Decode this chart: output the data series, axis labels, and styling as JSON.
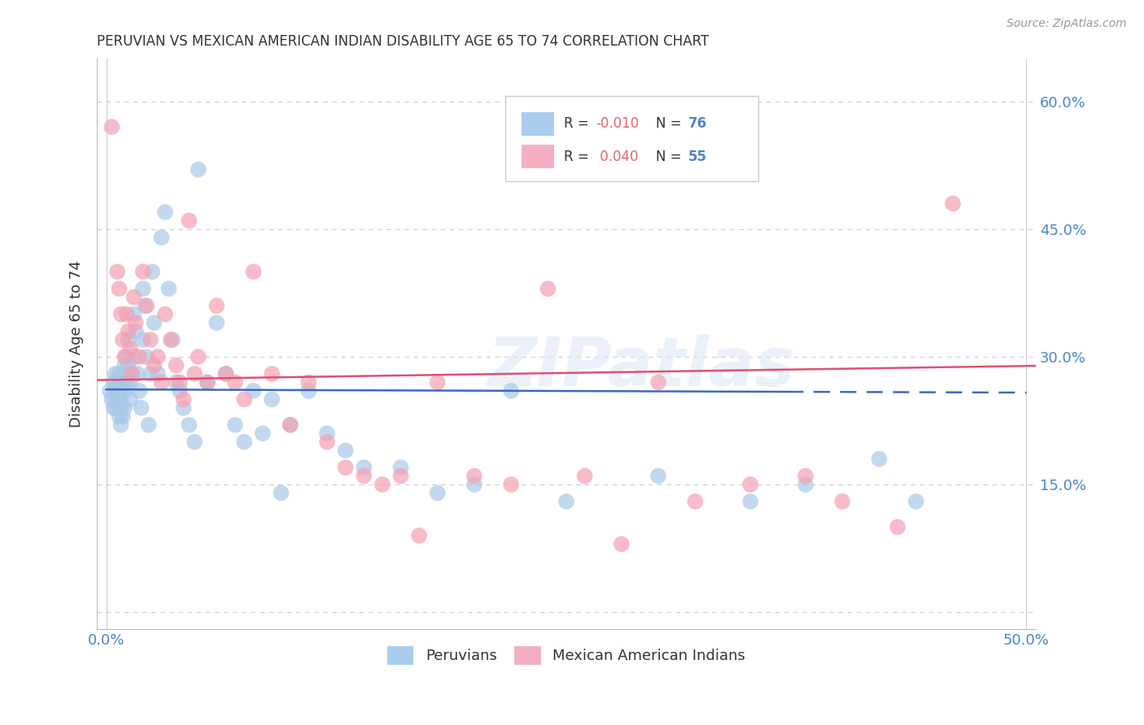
{
  "title": "PERUVIAN VS MEXICAN AMERICAN INDIAN DISABILITY AGE 65 TO 74 CORRELATION CHART",
  "source": "Source: ZipAtlas.com",
  "ylabel": "Disability Age 65 to 74",
  "xlim": [
    -0.005,
    0.505
  ],
  "ylim": [
    -0.02,
    0.65
  ],
  "xticks": [
    0.0,
    0.05,
    0.1,
    0.15,
    0.2,
    0.25,
    0.3,
    0.35,
    0.4,
    0.45,
    0.5
  ],
  "xticklabels": [
    "0.0%",
    "",
    "",
    "",
    "",
    "",
    "",
    "",
    "",
    "",
    "50.0%"
  ],
  "yticks": [
    0.0,
    0.15,
    0.3,
    0.45,
    0.6
  ],
  "yticklabels_right": [
    "",
    "15.0%",
    "30.0%",
    "45.0%",
    "60.0%"
  ],
  "grid_color": "#cccccc",
  "background_color": "#ffffff",
  "blue_color": "#a8c8e8",
  "pink_color": "#f4a0b0",
  "blue_line_color": "#3a6bbf",
  "pink_line_color": "#e05070",
  "blue_R": -0.01,
  "blue_N": 76,
  "pink_R": 0.04,
  "pink_N": 55,
  "watermark": "ZIPatlas",
  "legend_blue_label": "R = -0.010   N = 76",
  "legend_pink_label": "R =  0.040   N = 55",
  "blue_scatter_x": [
    0.002,
    0.003,
    0.004,
    0.004,
    0.005,
    0.005,
    0.005,
    0.006,
    0.006,
    0.007,
    0.007,
    0.007,
    0.008,
    0.008,
    0.008,
    0.009,
    0.009,
    0.01,
    0.01,
    0.01,
    0.011,
    0.011,
    0.012,
    0.012,
    0.013,
    0.013,
    0.014,
    0.015,
    0.015,
    0.016,
    0.017,
    0.018,
    0.019,
    0.02,
    0.02,
    0.021,
    0.022,
    0.023,
    0.024,
    0.025,
    0.026,
    0.028,
    0.03,
    0.032,
    0.034,
    0.036,
    0.038,
    0.04,
    0.042,
    0.045,
    0.048,
    0.05,
    0.055,
    0.06,
    0.065,
    0.07,
    0.075,
    0.08,
    0.085,
    0.09,
    0.095,
    0.1,
    0.11,
    0.12,
    0.13,
    0.14,
    0.16,
    0.18,
    0.2,
    0.22,
    0.25,
    0.3,
    0.35,
    0.38,
    0.42,
    0.44
  ],
  "blue_scatter_y": [
    0.26,
    0.25,
    0.27,
    0.24,
    0.28,
    0.26,
    0.24,
    0.27,
    0.25,
    0.23,
    0.28,
    0.26,
    0.25,
    0.22,
    0.24,
    0.27,
    0.23,
    0.29,
    0.26,
    0.24,
    0.3,
    0.27,
    0.32,
    0.29,
    0.27,
    0.25,
    0.28,
    0.35,
    0.3,
    0.33,
    0.28,
    0.26,
    0.24,
    0.38,
    0.32,
    0.36,
    0.3,
    0.22,
    0.28,
    0.4,
    0.34,
    0.28,
    0.44,
    0.47,
    0.38,
    0.32,
    0.27,
    0.26,
    0.24,
    0.22,
    0.2,
    0.52,
    0.27,
    0.34,
    0.28,
    0.22,
    0.2,
    0.26,
    0.21,
    0.25,
    0.14,
    0.22,
    0.26,
    0.21,
    0.19,
    0.17,
    0.17,
    0.14,
    0.15,
    0.26,
    0.13,
    0.16,
    0.13,
    0.15,
    0.18,
    0.13
  ],
  "pink_scatter_x": [
    0.003,
    0.006,
    0.007,
    0.008,
    0.009,
    0.01,
    0.011,
    0.012,
    0.013,
    0.014,
    0.015,
    0.016,
    0.018,
    0.02,
    0.022,
    0.024,
    0.026,
    0.028,
    0.03,
    0.032,
    0.035,
    0.038,
    0.04,
    0.042,
    0.045,
    0.048,
    0.05,
    0.055,
    0.06,
    0.065,
    0.07,
    0.075,
    0.08,
    0.09,
    0.1,
    0.11,
    0.12,
    0.13,
    0.14,
    0.15,
    0.16,
    0.17,
    0.18,
    0.2,
    0.22,
    0.24,
    0.26,
    0.28,
    0.3,
    0.32,
    0.35,
    0.38,
    0.4,
    0.43,
    0.46
  ],
  "pink_scatter_y": [
    0.57,
    0.4,
    0.38,
    0.35,
    0.32,
    0.3,
    0.35,
    0.33,
    0.31,
    0.28,
    0.37,
    0.34,
    0.3,
    0.4,
    0.36,
    0.32,
    0.29,
    0.3,
    0.27,
    0.35,
    0.32,
    0.29,
    0.27,
    0.25,
    0.46,
    0.28,
    0.3,
    0.27,
    0.36,
    0.28,
    0.27,
    0.25,
    0.4,
    0.28,
    0.22,
    0.27,
    0.2,
    0.17,
    0.16,
    0.15,
    0.16,
    0.09,
    0.27,
    0.16,
    0.15,
    0.38,
    0.16,
    0.08,
    0.27,
    0.13,
    0.15,
    0.16,
    0.13,
    0.1,
    0.48
  ]
}
